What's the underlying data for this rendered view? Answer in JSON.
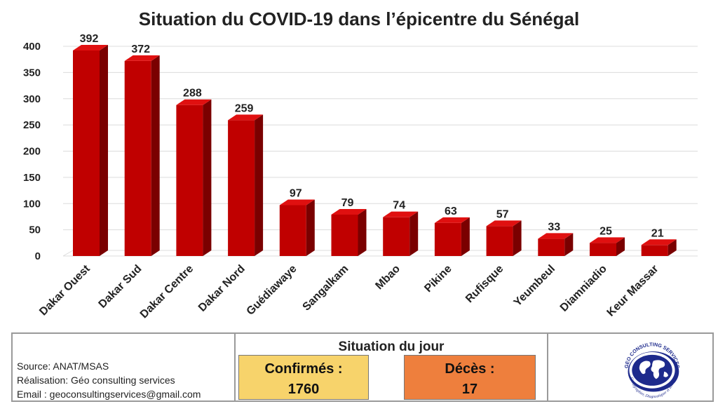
{
  "chart_data": {
    "type": "bar",
    "title": "Situation du COVID-19 dans l’épicentre du Sénégal",
    "categories": [
      "Dakar Ouest",
      "Dakar Sud",
      "Dakar Centre",
      "Dakar Nord",
      "Guédiawaye",
      "Sangalkam",
      "Mbao",
      "Pikine",
      "Rufisque",
      "Yeumbeul",
      "Diamniadio",
      "Keur Massar"
    ],
    "values": [
      392,
      372,
      288,
      259,
      97,
      79,
      74,
      63,
      57,
      33,
      25,
      21
    ],
    "yticks": [
      0,
      50,
      100,
      150,
      200,
      250,
      300,
      350,
      400
    ],
    "ylim": [
      0,
      400
    ],
    "xlabel": "",
    "ylabel": "",
    "grid": true,
    "bar_color": "#c00000",
    "bar_side_color": "#7a0000",
    "bar_top_color": "#e01010"
  },
  "footer": {
    "source": "Source: ANAT/MSAS",
    "realisation": "Réalisation: Géo consulting services",
    "email": "Email : geoconsultingservices@gmail.com",
    "situation_title": "Situation du jour",
    "confirmes_label": "Confirmés :",
    "confirmes_value": "1760",
    "deces_label": "Décès :",
    "deces_value": "17",
    "logo_text": "GEO CONSULTING SERVICES",
    "logo_tagline": "Cartographier, Diagnostiquer et Innover"
  },
  "colors": {
    "confirmes_bg": "#f7d36b",
    "deces_bg": "#ee7f3d",
    "logo_blue": "#1d2a8c"
  },
  "icons": {
    "logo": "globe-logo-icon"
  }
}
